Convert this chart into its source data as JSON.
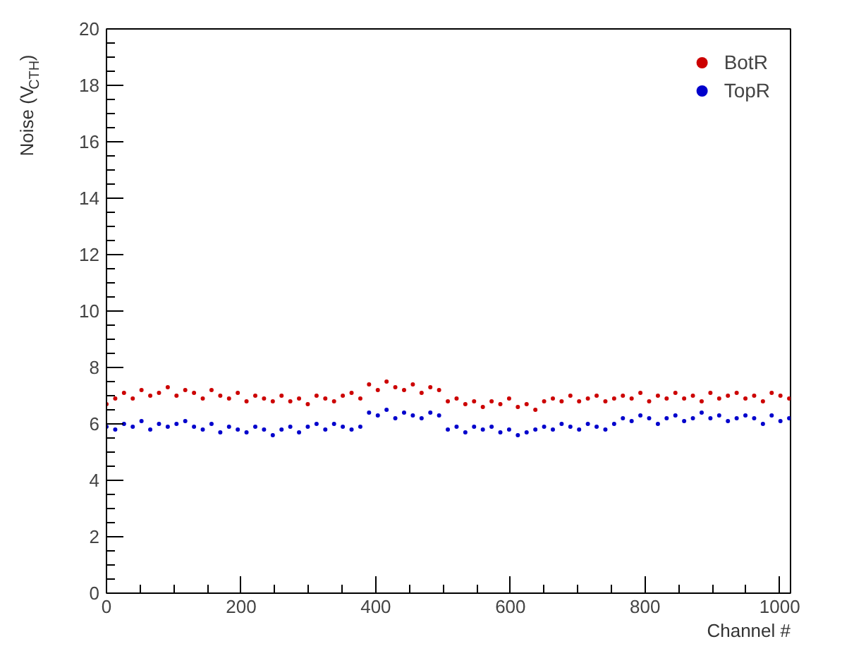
{
  "chart_data": {
    "type": "scatter",
    "xlabel": "Channel #",
    "ylabel": "Noise (V$_{CTH}$)",
    "x": [
      0,
      13,
      26,
      39,
      52,
      65,
      78,
      91,
      104,
      117,
      130,
      143,
      156,
      169,
      182,
      195,
      208,
      221,
      234,
      247,
      260,
      273,
      286,
      299,
      312,
      325,
      338,
      351,
      364,
      377,
      390,
      403,
      416,
      429,
      442,
      455,
      468,
      481,
      494,
      507,
      520,
      533,
      546,
      559,
      572,
      585,
      598,
      611,
      624,
      637,
      650,
      663,
      676,
      689,
      702,
      715,
      728,
      741,
      754,
      767,
      780,
      793,
      806,
      819,
      832,
      845,
      858,
      871,
      884,
      897,
      910,
      923,
      936,
      949,
      962,
      975,
      988,
      1001,
      1014
    ],
    "series": [
      {
        "name": "BotR",
        "color": "#cc0000",
        "values": [
          6.7,
          6.9,
          7.1,
          6.9,
          7.2,
          7.0,
          7.1,
          7.3,
          7.0,
          7.2,
          7.1,
          6.9,
          7.2,
          7.0,
          6.9,
          7.1,
          6.8,
          7.0,
          6.9,
          6.8,
          7.0,
          6.8,
          6.9,
          6.7,
          7.0,
          6.9,
          6.8,
          7.0,
          7.1,
          6.9,
          7.4,
          7.2,
          7.5,
          7.3,
          7.2,
          7.4,
          7.1,
          7.3,
          7.2,
          6.8,
          6.9,
          6.7,
          6.8,
          6.6,
          6.8,
          6.7,
          6.9,
          6.6,
          6.7,
          6.5,
          6.8,
          6.9,
          6.8,
          7.0,
          6.8,
          6.9,
          7.0,
          6.8,
          6.9,
          7.0,
          6.9,
          7.1,
          6.8,
          7.0,
          6.9,
          7.1,
          6.9,
          7.0,
          6.8,
          7.1,
          6.9,
          7.0,
          7.1,
          6.9,
          7.0,
          6.8,
          7.1,
          7.0,
          6.9
        ]
      },
      {
        "name": "TopR",
        "color": "#0000cc",
        "values": [
          5.9,
          5.8,
          6.0,
          5.9,
          6.1,
          5.8,
          6.0,
          5.9,
          6.0,
          6.1,
          5.9,
          5.8,
          6.0,
          5.7,
          5.9,
          5.8,
          5.7,
          5.9,
          5.8,
          5.6,
          5.8,
          5.9,
          5.7,
          5.9,
          6.0,
          5.8,
          6.0,
          5.9,
          5.8,
          5.9,
          6.4,
          6.3,
          6.5,
          6.2,
          6.4,
          6.3,
          6.2,
          6.4,
          6.3,
          5.8,
          5.9,
          5.7,
          5.9,
          5.8,
          5.9,
          5.7,
          5.8,
          5.6,
          5.7,
          5.8,
          5.9,
          5.8,
          6.0,
          5.9,
          5.8,
          6.0,
          5.9,
          5.8,
          6.0,
          6.2,
          6.1,
          6.3,
          6.2,
          6.0,
          6.2,
          6.3,
          6.1,
          6.2,
          6.4,
          6.2,
          6.3,
          6.1,
          6.2,
          6.3,
          6.2,
          6.0,
          6.3,
          6.1,
          6.2
        ]
      }
    ],
    "xlim": [
      0,
      1016
    ],
    "ylim": [
      0,
      20
    ],
    "xticks": [
      0,
      200,
      400,
      600,
      800,
      1000
    ],
    "yticks": [
      0,
      2,
      4,
      6,
      8,
      10,
      12,
      14,
      16,
      18,
      20
    ],
    "grid": false,
    "legend": "top right",
    "marker": "circle"
  }
}
